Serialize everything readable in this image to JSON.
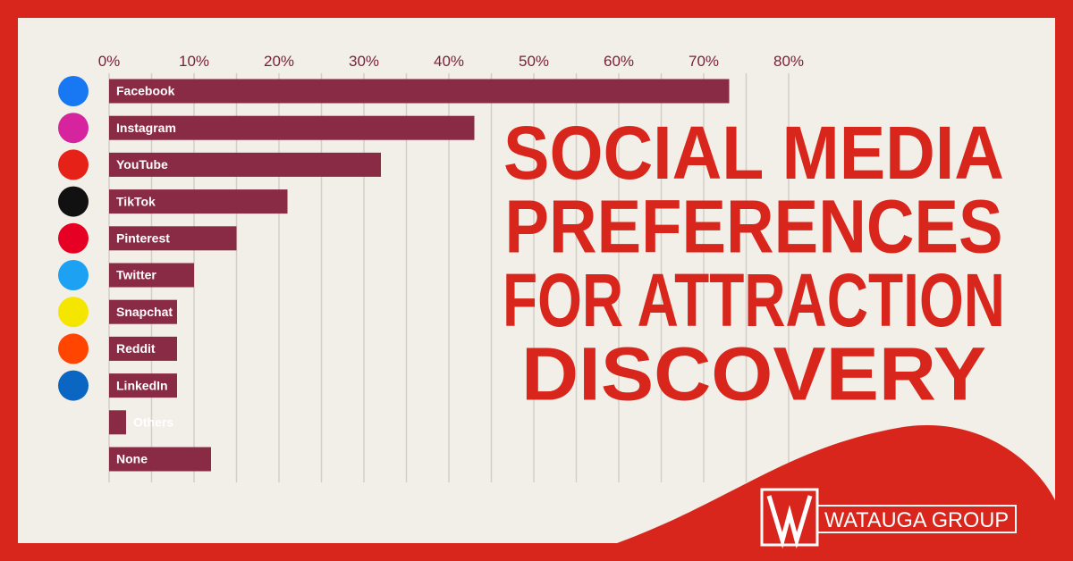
{
  "chart_data": {
    "type": "bar",
    "orientation": "horizontal",
    "title": [
      "SOCIAL MEDIA",
      "PREFERENCES",
      "FOR ATTRACTION",
      "DISCOVERY"
    ],
    "categories": [
      "Facebook",
      "Instagram",
      "YouTube",
      "TikTok",
      "Pinterest",
      "Twitter",
      "Snapchat",
      "Reddit",
      "LinkedIn",
      "Others",
      "None"
    ],
    "values": [
      73,
      43,
      32,
      21,
      15,
      10,
      8,
      8,
      8,
      2,
      12
    ],
    "color": "#8a2b46",
    "xlim": [
      0,
      80
    ],
    "xticks": [
      {
        "value": 0,
        "label": "0%"
      },
      {
        "value": 10,
        "label": "10%"
      },
      {
        "value": 20,
        "label": "20%"
      },
      {
        "value": 30,
        "label": "30%"
      },
      {
        "value": 40,
        "label": "40%"
      },
      {
        "value": 50,
        "label": "50%"
      },
      {
        "value": 60,
        "label": "60%"
      },
      {
        "value": 70,
        "label": "70%"
      },
      {
        "value": 80,
        "label": "80%"
      }
    ],
    "minor_xticks": [
      5,
      15,
      25,
      35,
      45,
      55,
      65,
      75
    ],
    "grid": true,
    "brand": "WATAUGA GROUP"
  }
}
